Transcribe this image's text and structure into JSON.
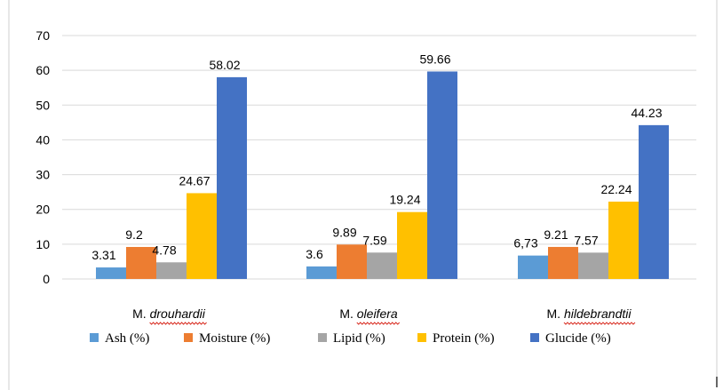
{
  "chart_data": {
    "type": "bar",
    "categories": [
      {
        "prefix": "M. ",
        "species": "drouhardii"
      },
      {
        "prefix": "M. ",
        "species": "oleifera"
      },
      {
        "prefix": "M. ",
        "species": "hildebrandtii"
      }
    ],
    "series": [
      {
        "name": "Ash (%)",
        "color": "#5b9bd5",
        "values": [
          3.31,
          3.6,
          6.73
        ],
        "labels": [
          "3.31",
          "3.6",
          "6,73"
        ]
      },
      {
        "name": "Moisture (%)",
        "color": "#ed7d31",
        "values": [
          9.2,
          9.89,
          9.21
        ],
        "labels": [
          "9.2",
          "9.89",
          "9.21"
        ]
      },
      {
        "name": "Lipid (%)",
        "color": "#a5a5a5",
        "values": [
          4.78,
          7.59,
          7.57
        ],
        "labels": [
          "4.78",
          "7.59",
          "7.57"
        ]
      },
      {
        "name": "Protein (%)",
        "color": "#ffc000",
        "values": [
          24.67,
          19.24,
          22.24
        ],
        "labels": [
          "24.67",
          "19.24",
          "22.24"
        ]
      },
      {
        "name": "Glucide (%)",
        "color": "#4472c4",
        "values": [
          58.02,
          59.66,
          44.23
        ],
        "labels": [
          "58.02",
          "59.66",
          "44.23"
        ]
      }
    ],
    "yticks": [
      "0",
      "10",
      "20",
      "30",
      "40",
      "50",
      "60",
      "70"
    ],
    "ylim": [
      0,
      70
    ],
    "grid": true,
    "legend_position": "bottom"
  }
}
